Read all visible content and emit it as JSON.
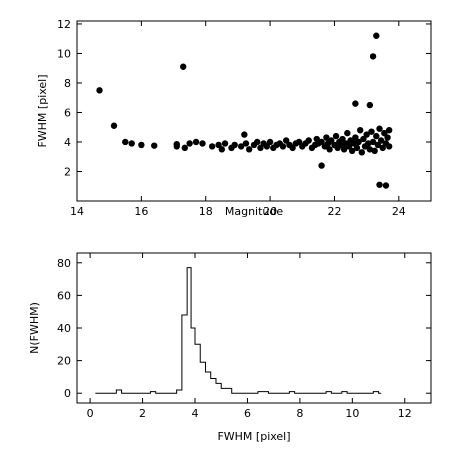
{
  "chart_data": [
    {
      "type": "scatter",
      "xlabel": "Magnitude",
      "ylabel": "FWHM [pixel]",
      "xlim": [
        14,
        25
      ],
      "ylim": [
        0,
        12.2
      ],
      "xticks": [
        14,
        16,
        18,
        20,
        22,
        24
      ],
      "yticks": [
        2,
        4,
        6,
        8,
        10,
        12
      ],
      "grid": false,
      "points": [
        [
          14.7,
          7.5
        ],
        [
          15.15,
          5.1
        ],
        [
          15.5,
          4.0
        ],
        [
          15.7,
          3.9
        ],
        [
          16.0,
          3.8
        ],
        [
          16.4,
          3.75
        ],
        [
          17.1,
          3.7
        ],
        [
          17.1,
          3.85
        ],
        [
          17.3,
          9.1
        ],
        [
          17.35,
          3.6
        ],
        [
          17.5,
          3.9
        ],
        [
          17.7,
          4.0
        ],
        [
          17.9,
          3.9
        ],
        [
          18.2,
          3.7
        ],
        [
          18.4,
          3.8
        ],
        [
          18.5,
          3.5
        ],
        [
          18.6,
          3.9
        ],
        [
          18.8,
          3.6
        ],
        [
          18.9,
          3.8
        ],
        [
          19.1,
          3.7
        ],
        [
          19.2,
          4.5
        ],
        [
          19.25,
          3.9
        ],
        [
          19.35,
          3.5
        ],
        [
          19.5,
          3.8
        ],
        [
          19.6,
          4.0
        ],
        [
          19.7,
          3.6
        ],
        [
          19.8,
          3.9
        ],
        [
          19.9,
          3.7
        ],
        [
          20.0,
          4.0
        ],
        [
          20.1,
          3.6
        ],
        [
          20.2,
          3.8
        ],
        [
          20.3,
          3.9
        ],
        [
          20.4,
          3.7
        ],
        [
          20.5,
          4.1
        ],
        [
          20.6,
          3.8
        ],
        [
          20.7,
          3.6
        ],
        [
          20.8,
          3.9
        ],
        [
          20.9,
          4.0
        ],
        [
          21.0,
          3.7
        ],
        [
          21.1,
          3.9
        ],
        [
          21.2,
          4.1
        ],
        [
          21.3,
          3.6
        ],
        [
          21.4,
          3.8
        ],
        [
          21.45,
          4.2
        ],
        [
          21.5,
          3.9
        ],
        [
          21.6,
          2.4
        ],
        [
          21.6,
          4.0
        ],
        [
          21.7,
          3.7
        ],
        [
          21.75,
          4.3
        ],
        [
          21.8,
          3.9
        ],
        [
          21.85,
          3.5
        ],
        [
          21.9,
          4.1
        ],
        [
          22.0,
          3.8
        ],
        [
          22.05,
          4.4
        ],
        [
          22.1,
          3.6
        ],
        [
          22.15,
          4.0
        ],
        [
          22.2,
          3.8
        ],
        [
          22.25,
          4.2
        ],
        [
          22.3,
          3.5
        ],
        [
          22.35,
          3.9
        ],
        [
          22.4,
          4.6
        ],
        [
          22.45,
          3.7
        ],
        [
          22.5,
          4.1
        ],
        [
          22.55,
          3.4
        ],
        [
          22.6,
          3.9
        ],
        [
          22.65,
          6.6
        ],
        [
          22.65,
          4.3
        ],
        [
          22.7,
          3.6
        ],
        [
          22.75,
          4.0
        ],
        [
          22.8,
          4.8
        ],
        [
          22.85,
          3.3
        ],
        [
          22.9,
          4.2
        ],
        [
          22.95,
          3.7
        ],
        [
          23.0,
          4.5
        ],
        [
          23.05,
          3.9
        ],
        [
          23.1,
          6.5
        ],
        [
          23.1,
          3.5
        ],
        [
          23.15,
          4.7
        ],
        [
          23.2,
          9.8
        ],
        [
          23.2,
          4.0
        ],
        [
          23.25,
          3.4
        ],
        [
          23.3,
          11.2
        ],
        [
          23.3,
          4.4
        ],
        [
          23.35,
          3.8
        ],
        [
          23.4,
          1.1
        ],
        [
          23.4,
          4.9
        ],
        [
          23.45,
          4.1
        ],
        [
          23.5,
          3.6
        ],
        [
          23.55,
          4.6
        ],
        [
          23.6,
          1.05
        ],
        [
          23.6,
          3.9
        ],
        [
          23.65,
          4.3
        ],
        [
          23.7,
          4.8
        ],
        [
          23.7,
          3.7
        ]
      ]
    },
    {
      "type": "histogram",
      "xlabel": "FWHM [pixel]",
      "ylabel": "N(FWHM)",
      "xlim": [
        -0.5,
        13
      ],
      "ylim": [
        -6,
        86
      ],
      "xticks": [
        0,
        2,
        4,
        6,
        8,
        10,
        12
      ],
      "yticks": [
        0,
        20,
        40,
        60,
        80
      ],
      "grid": false,
      "bin_edges": [
        0.2,
        1.0,
        1.2,
        2.3,
        2.5,
        3.3,
        3.5,
        3.7,
        3.85,
        4.0,
        4.2,
        4.4,
        4.6,
        4.8,
        5.0,
        5.4,
        6.4,
        6.8,
        7.6,
        7.8,
        9.0,
        9.2,
        9.6,
        9.8,
        10.8,
        11.0,
        11.1
      ],
      "counts": [
        0,
        2,
        0,
        1,
        0,
        2,
        48,
        77,
        40,
        30,
        19,
        13,
        9,
        6,
        3,
        0,
        1,
        0,
        1,
        0,
        1,
        0,
        1,
        0,
        1,
        0
      ]
    }
  ]
}
